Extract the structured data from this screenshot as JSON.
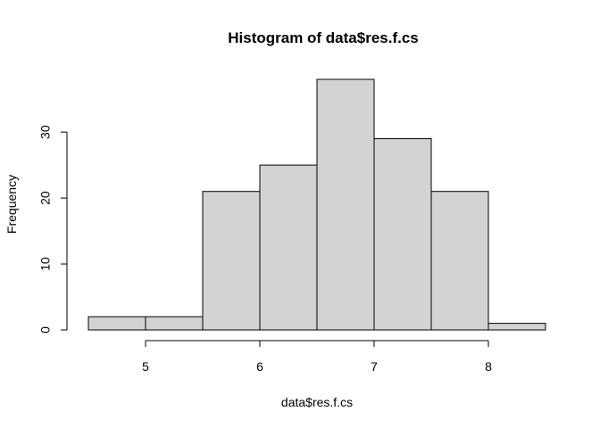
{
  "chart_data": {
    "type": "bar",
    "title": "Histogram of data$res.f.cs",
    "xlabel": "data$res.f.cs",
    "ylabel": "Frequency",
    "bins": [
      {
        "x0": 4.5,
        "x1": 5.0,
        "count": 2
      },
      {
        "x0": 5.0,
        "x1": 5.5,
        "count": 2
      },
      {
        "x0": 5.5,
        "x1": 6.0,
        "count": 21
      },
      {
        "x0": 6.0,
        "x1": 6.5,
        "count": 25
      },
      {
        "x0": 6.5,
        "x1": 7.0,
        "count": 38
      },
      {
        "x0": 7.0,
        "x1": 7.5,
        "count": 29
      },
      {
        "x0": 7.5,
        "x1": 8.0,
        "count": 21
      },
      {
        "x0": 8.0,
        "x1": 8.5,
        "count": 1
      }
    ],
    "xticks": [
      5,
      6,
      7,
      8
    ],
    "yticks": [
      0,
      10,
      20,
      30
    ],
    "xlim": [
      4.5,
      8.5
    ],
    "ylim": [
      0,
      38
    ],
    "bar_color": "#d3d3d3",
    "grid": false,
    "legend": "none"
  }
}
